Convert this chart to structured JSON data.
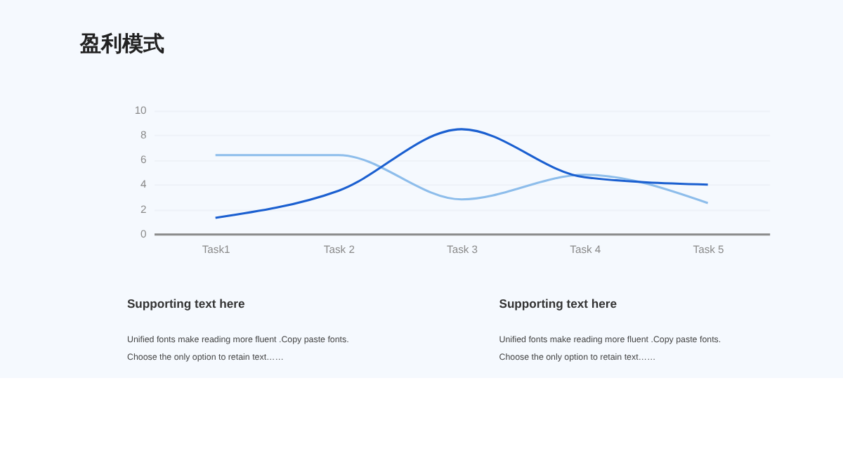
{
  "chart_data": {
    "type": "line",
    "title": "盈利模式",
    "categories": [
      "Task1",
      "Task 2",
      "Task 3",
      "Task 4",
      "Task 5"
    ],
    "series": [
      {
        "color": "#8dbdeb",
        "values": [
          6.4,
          6.4,
          2.8,
          4.8,
          2.5
        ]
      },
      {
        "color": "#1a5fd0",
        "values": [
          1.3,
          3.5,
          8.5,
          4.6,
          4.0
        ]
      }
    ],
    "ylim": [
      0,
      10
    ],
    "yticks": [
      0,
      2,
      4,
      6,
      8,
      10
    ],
    "grid": "y",
    "legend": false,
    "marker": "none",
    "line_style": "solid",
    "annotations": [
      "Supporting text here",
      "Unified fonts make reading more fluent .Copy  paste fonts.",
      "Choose the only option to retain text……",
      "Supporting text here",
      "Unified fonts make reading more fluent .Copy  paste fonts.",
      "Choose the only option to retain text……"
    ]
  }
}
